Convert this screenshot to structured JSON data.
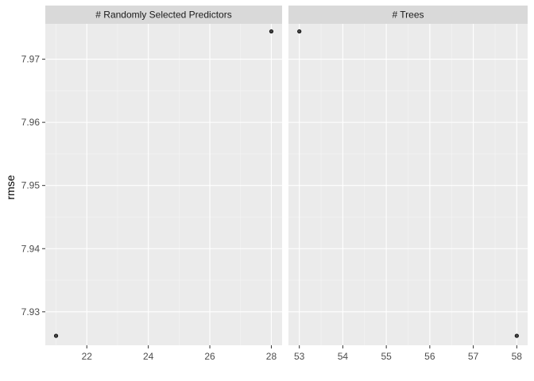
{
  "colors": {
    "panel_bg": "#ebebeb",
    "strip_bg": "#d9d9d9",
    "grid_major": "#ffffff",
    "grid_minor": "#f5f5f5",
    "tick": "#333333",
    "point_fill": "#444444",
    "point_stroke": "#000000"
  },
  "chart_data": {
    "type": "scatter",
    "ylabel": "rmse",
    "ylim": [
      7.9247,
      7.9756
    ],
    "yticks": [
      7.93,
      7.94,
      7.95,
      7.96,
      7.97
    ],
    "ytick_labels": [
      "7.93",
      "7.94",
      "7.95",
      "7.96",
      "7.97"
    ],
    "grid": true,
    "facets": [
      {
        "title": "# Randomly Selected Predictors",
        "xlim": [
          20.65,
          28.35
        ],
        "xticks": [
          22,
          24,
          26,
          28
        ],
        "xtick_labels": [
          "22",
          "24",
          "26",
          "28"
        ],
        "points": [
          {
            "x": 21,
            "y": 7.9262
          },
          {
            "x": 28,
            "y": 7.9744
          }
        ]
      },
      {
        "title": "# Trees",
        "xlim": [
          52.75,
          58.25
        ],
        "xticks": [
          53,
          54,
          55,
          56,
          57,
          58
        ],
        "xtick_labels": [
          "53",
          "54",
          "55",
          "56",
          "57",
          "58"
        ],
        "points": [
          {
            "x": 53,
            "y": 7.9744
          },
          {
            "x": 58,
            "y": 7.9262
          }
        ]
      }
    ]
  }
}
